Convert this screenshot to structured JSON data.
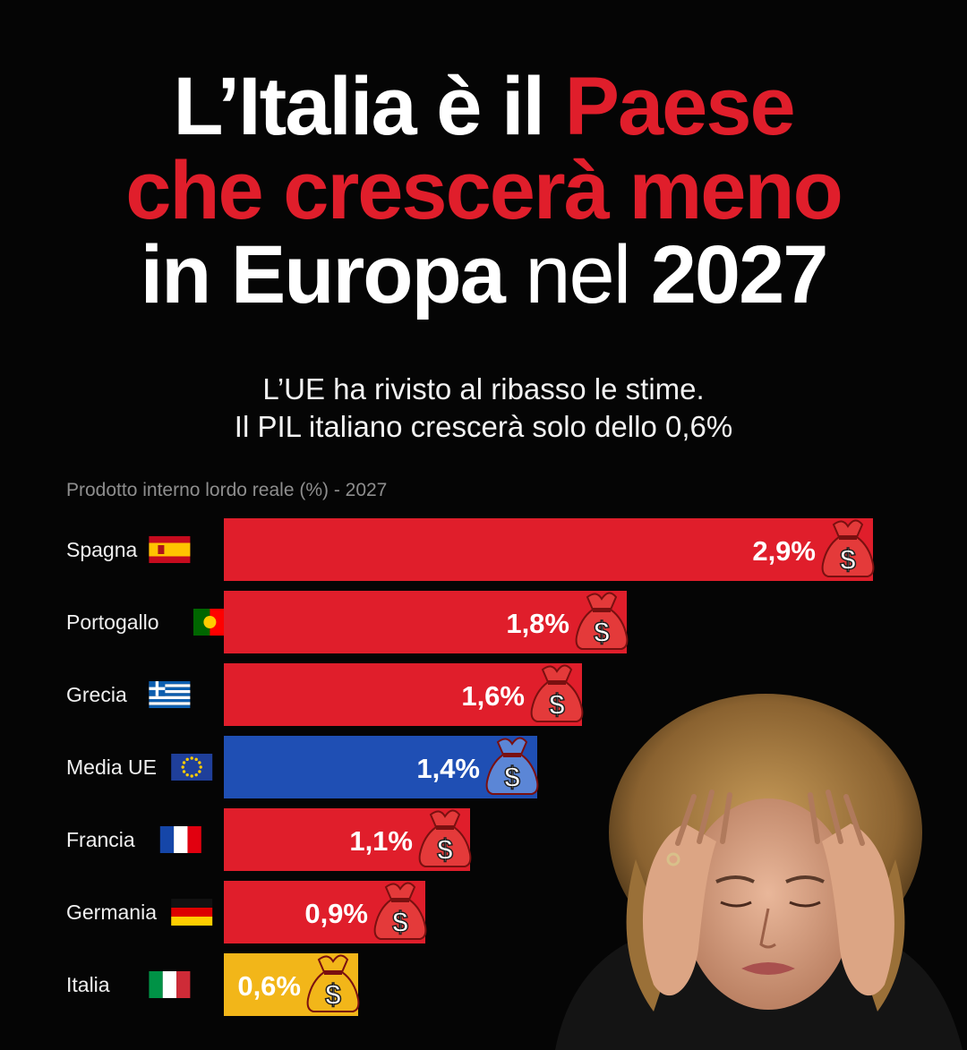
{
  "title": {
    "line1_a": "L’Italia è il ",
    "line1_b": "Paese",
    "line2": "che crescerà meno",
    "line3_a": "in Europa ",
    "line3_b": "nel ",
    "line3_c": "2027"
  },
  "subtitle": {
    "line1": "L’UE ha rivisto al ribasso le stime.",
    "line2": "Il PIL italiano crescerà solo dello 0,6%"
  },
  "chart_data": {
    "type": "bar",
    "orientation": "horizontal",
    "title": "Prodotto interno lordo reale (%) - 2027",
    "categories": [
      "Spagna",
      "Portogallo",
      "Grecia",
      "Media UE",
      "Francia",
      "Germania",
      "Italia"
    ],
    "values": [
      2.9,
      1.8,
      1.6,
      1.4,
      1.1,
      0.9,
      0.6
    ],
    "value_labels": [
      "2,9%",
      "1,8%",
      "1,6%",
      "1,4%",
      "1,1%",
      "0,9%",
      "0,6%"
    ],
    "colors": [
      "#e01e2b",
      "#e01e2b",
      "#e01e2b",
      "#1f4fb4",
      "#e01e2b",
      "#e01e2b",
      "#f2b619"
    ],
    "flags": [
      "spain-flag-icon",
      "portugal-flag-icon",
      "greece-flag-icon",
      "eu-flag-icon",
      "france-flag-icon",
      "germany-flag-icon",
      "italy-flag-icon"
    ],
    "grid": false,
    "legend": "none"
  },
  "colors": {
    "background": "#050505",
    "accent_red": "#e01e2b",
    "eu_blue": "#1f4fb4",
    "italy_yellow": "#f2b619"
  },
  "icons": {
    "money_bag": "money-bag-icon"
  }
}
